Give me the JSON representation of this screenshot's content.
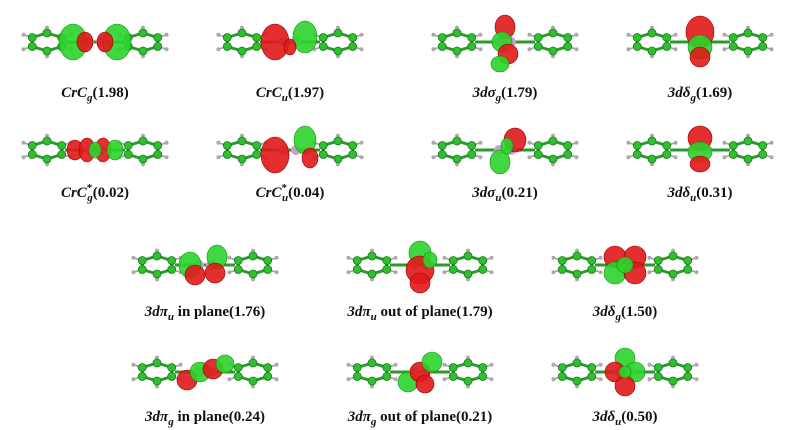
{
  "panels": [
    {
      "label": {
        "main": "CrC",
        "sub": "g",
        "rest": "(1.98)"
      }
    },
    {
      "label": {
        "main": "CrC",
        "sub": "u",
        "rest": "(1.97)"
      }
    },
    {
      "label": {
        "main": "3dσ",
        "sub": "g",
        "rest": "(1.79)"
      }
    },
    {
      "label": {
        "main": "3dδ",
        "sub": "g",
        "rest": "(1.69)"
      }
    },
    {
      "label": {
        "main": "CrC",
        "sup": "*",
        "sub": "g",
        "rest": "(0.02)"
      }
    },
    {
      "label": {
        "main": "CrC",
        "sup": "*",
        "sub": "u",
        "rest": "(0.04)"
      }
    },
    {
      "label": {
        "main": "3dσ",
        "sub": "u",
        "rest": "(0.21)"
      }
    },
    {
      "label": {
        "main": "3dδ",
        "sub": "u",
        "rest": "(0.31)"
      }
    },
    {
      "label": {
        "main": "3dπ",
        "sub": "u",
        "rest": " in plane(1.76)"
      }
    },
    {
      "label": {
        "main": "3dπ",
        "sub": "u",
        "rest": " out of plane(1.79)"
      }
    },
    {
      "label": {
        "main": "3dδ",
        "sub": "g",
        "rest": "(1.50)"
      }
    },
    {
      "label": {
        "main": "3dπ",
        "sub": "g",
        "rest": " in plane(0.24)"
      }
    },
    {
      "label": {
        "main": "3dπ",
        "sub": "g",
        "rest": " out of plane(0.21)"
      }
    },
    {
      "label": {
        "main": "3dδ",
        "sub": "u",
        "rest": "(0.50)"
      }
    }
  ]
}
